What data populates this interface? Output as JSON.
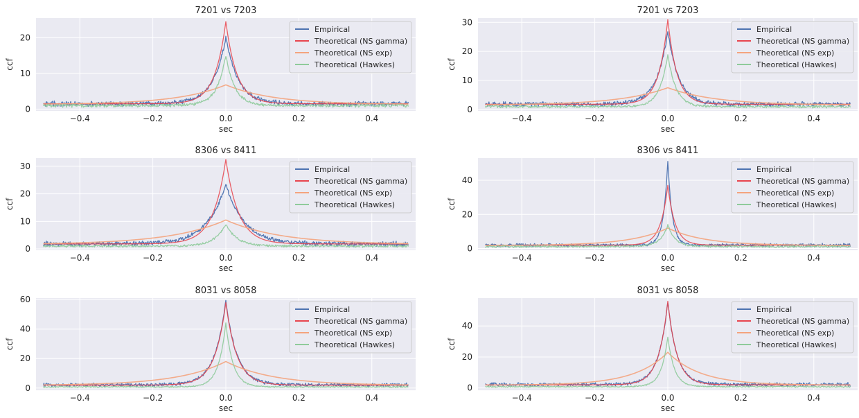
{
  "figure": {
    "legend_position": "top-right",
    "grid": true,
    "colors": {
      "background": "#eaeaf2",
      "grid": "#ffffff",
      "text": "#262626",
      "empirical": "#4c72b0",
      "ns_gamma": "#e8444d",
      "ns_exp": "#f4a47e",
      "hawkes": "#8fcb9b"
    }
  },
  "chart_data": [
    {
      "type": "line",
      "title": "7201 vs 7203",
      "xlabel": "sec",
      "ylabel": "ccf",
      "xlim": [
        -0.52,
        0.52
      ],
      "ylim": [
        -0.5,
        25.5
      ],
      "xticks": [
        -0.4,
        -0.2,
        0.0,
        0.2,
        0.4
      ],
      "xtick_labels": [
        "−0.4",
        "−0.2",
        "0.0",
        "0.2",
        "0.4"
      ],
      "yticks": [
        0,
        10,
        20
      ],
      "ytick_labels": [
        "0",
        "10",
        "20"
      ],
      "series": [
        {
          "name": "Empirical",
          "color": "#4c72b0",
          "peak": 20,
          "base": 1.5,
          "width": 0.035,
          "noise": 0.45
        },
        {
          "name": "Theoretical (NS gamma)",
          "color": "#e8444d",
          "peak": 24.5,
          "base": 1.5,
          "width": 0.03,
          "noise": 0.0
        },
        {
          "name": "Theoretical (NS exp)",
          "color": "#f4a47e",
          "peak": 6.8,
          "base": 1.3,
          "width": 0.13,
          "noise": 0.0
        },
        {
          "name": "Theoretical (Hawkes)",
          "color": "#8fcb9b",
          "peak": 15,
          "base": 1.0,
          "width": 0.025,
          "noise": 0.3
        }
      ]
    },
    {
      "type": "line",
      "title": "7201 vs 7203",
      "xlabel": "sec",
      "ylabel": "ccf",
      "xlim": [
        -0.52,
        0.52
      ],
      "ylim": [
        -0.5,
        31.5
      ],
      "xticks": [
        -0.4,
        -0.2,
        0.0,
        0.2,
        0.4
      ],
      "xtick_labels": [
        "−0.4",
        "−0.2",
        "0.0",
        "0.2",
        "0.4"
      ],
      "yticks": [
        0,
        10,
        20,
        30
      ],
      "ytick_labels": [
        "0",
        "10",
        "20",
        "30"
      ],
      "series": [
        {
          "name": "Empirical",
          "color": "#4c72b0",
          "peak": 27,
          "base": 1.8,
          "width": 0.03,
          "noise": 0.55
        },
        {
          "name": "Theoretical (NS gamma)",
          "color": "#e8444d",
          "peak": 31,
          "base": 1.8,
          "width": 0.025,
          "noise": 0.0
        },
        {
          "name": "Theoretical (NS exp)",
          "color": "#f4a47e",
          "peak": 7.5,
          "base": 1.5,
          "width": 0.13,
          "noise": 0.0
        },
        {
          "name": "Theoretical (Hawkes)",
          "color": "#8fcb9b",
          "peak": 19,
          "base": 1.0,
          "width": 0.022,
          "noise": 0.3
        }
      ]
    },
    {
      "type": "line",
      "title": "8306 vs 8411",
      "xlabel": "sec",
      "ylabel": "ccf",
      "xlim": [
        -0.52,
        0.52
      ],
      "ylim": [
        -0.5,
        33
      ],
      "xticks": [
        -0.4,
        -0.2,
        0.0,
        0.2,
        0.4
      ],
      "xtick_labels": [
        "−0.4",
        "−0.2",
        "0.0",
        "0.2",
        "0.4"
      ],
      "yticks": [
        0,
        10,
        20,
        30
      ],
      "ytick_labels": [
        "0",
        "10",
        "20",
        "30"
      ],
      "series": [
        {
          "name": "Empirical",
          "color": "#4c72b0",
          "peak": 23.5,
          "base": 1.8,
          "width": 0.05,
          "noise": 0.6
        },
        {
          "name": "Theoretical (NS gamma)",
          "color": "#e8444d",
          "peak": 32.5,
          "base": 1.8,
          "width": 0.035,
          "noise": 0.0
        },
        {
          "name": "Theoretical (NS exp)",
          "color": "#f4a47e",
          "peak": 10.5,
          "base": 1.6,
          "width": 0.15,
          "noise": 0.0
        },
        {
          "name": "Theoretical (Hawkes)",
          "color": "#8fcb9b",
          "peak": 9,
          "base": 1.0,
          "width": 0.03,
          "noise": 0.3
        }
      ]
    },
    {
      "type": "line",
      "title": "8306 vs 8411",
      "xlabel": "sec",
      "ylabel": "ccf",
      "xlim": [
        -0.52,
        0.52
      ],
      "ylim": [
        -1,
        53
      ],
      "xticks": [
        -0.4,
        -0.2,
        0.0,
        0.2,
        0.4
      ],
      "xtick_labels": [
        "−0.4",
        "−0.2",
        "0.0",
        "0.2",
        "0.4"
      ],
      "yticks": [
        0,
        20,
        40
      ],
      "ytick_labels": [
        "0",
        "20",
        "40"
      ],
      "series": [
        {
          "name": "Empirical",
          "color": "#4c72b0",
          "peak": 51,
          "base": 2.0,
          "width": 0.012,
          "noise": 0.6
        },
        {
          "name": "Theoretical (NS gamma)",
          "color": "#e8444d",
          "peak": 37,
          "base": 2.0,
          "width": 0.02,
          "noise": 0.0
        },
        {
          "name": "Theoretical (NS exp)",
          "color": "#f4a47e",
          "peak": 12,
          "base": 1.8,
          "width": 0.1,
          "noise": 0.0
        },
        {
          "name": "Theoretical (Hawkes)",
          "color": "#8fcb9b",
          "peak": 14,
          "base": 1.2,
          "width": 0.02,
          "noise": 0.4
        }
      ]
    },
    {
      "type": "line",
      "title": "8031 vs 8058",
      "xlabel": "sec",
      "ylabel": "ccf",
      "xlim": [
        -0.52,
        0.52
      ],
      "ylim": [
        -1.5,
        61
      ],
      "xticks": [
        -0.4,
        -0.2,
        0.0,
        0.2,
        0.4
      ],
      "xtick_labels": [
        "−0.4",
        "−0.2",
        "0.0",
        "0.2",
        "0.4"
      ],
      "yticks": [
        0,
        20,
        40,
        60
      ],
      "ytick_labels": [
        "0",
        "20",
        "40",
        "60"
      ],
      "series": [
        {
          "name": "Empirical",
          "color": "#4c72b0",
          "peak": 59,
          "base": 2.2,
          "width": 0.03,
          "noise": 0.8
        },
        {
          "name": "Theoretical (NS gamma)",
          "color": "#e8444d",
          "peak": 58,
          "base": 2.0,
          "width": 0.03,
          "noise": 0.0
        },
        {
          "name": "Theoretical (NS exp)",
          "color": "#f4a47e",
          "peak": 18,
          "base": 1.8,
          "width": 0.13,
          "noise": 0.0
        },
        {
          "name": "Theoretical (Hawkes)",
          "color": "#8fcb9b",
          "peak": 44,
          "base": 0.8,
          "width": 0.02,
          "noise": 0.3
        }
      ]
    },
    {
      "type": "line",
      "title": "8031 vs 8058",
      "xlabel": "sec",
      "ylabel": "ccf",
      "xlim": [
        -0.52,
        0.52
      ],
      "ylim": [
        -1.5,
        58
      ],
      "xticks": [
        -0.4,
        -0.2,
        0.0,
        0.2,
        0.4
      ],
      "xtick_labels": [
        "−0.4",
        "−0.2",
        "0.0",
        "0.2",
        "0.4"
      ],
      "yticks": [
        0,
        20,
        40
      ],
      "ytick_labels": [
        "0",
        "20",
        "40"
      ],
      "series": [
        {
          "name": "Empirical",
          "color": "#4c72b0",
          "peak": 56,
          "base": 2.2,
          "width": 0.025,
          "noise": 0.8
        },
        {
          "name": "Theoretical (NS gamma)",
          "color": "#e8444d",
          "peak": 56,
          "base": 2.0,
          "width": 0.025,
          "noise": 0.0
        },
        {
          "name": "Theoretical (NS exp)",
          "color": "#f4a47e",
          "peak": 23,
          "base": 1.8,
          "width": 0.09,
          "noise": 0.0
        },
        {
          "name": "Theoretical (Hawkes)",
          "color": "#8fcb9b",
          "peak": 33,
          "base": 0.8,
          "width": 0.018,
          "noise": 0.3
        }
      ]
    }
  ]
}
